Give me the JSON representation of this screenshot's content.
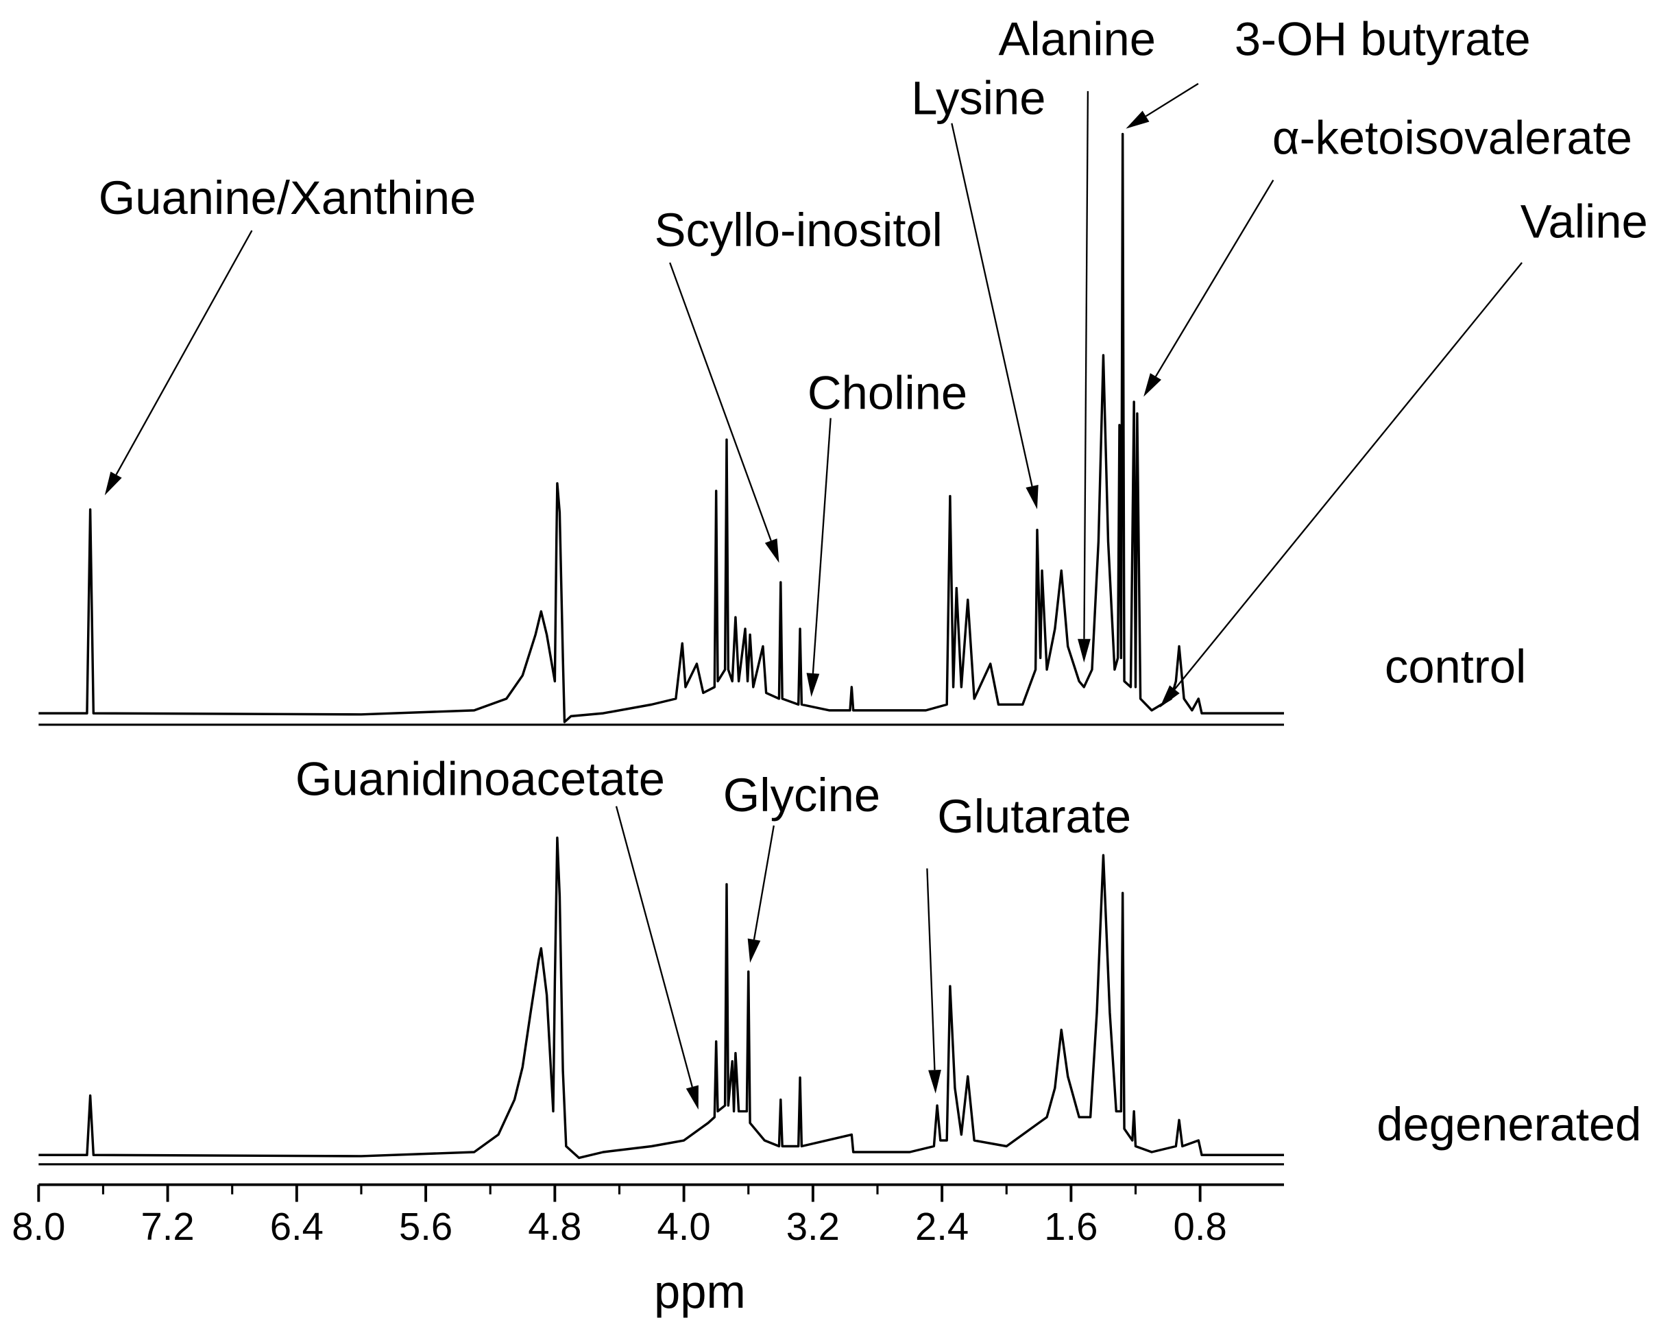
{
  "chart_data": {
    "type": "line",
    "xlabel": "ppm",
    "xlim": [
      8.0,
      0.28
    ],
    "ylim": [
      0,
      100
    ],
    "xticks": [
      {
        "value": 8,
        "label": "8.0"
      },
      7.2,
      6.4,
      5.6,
      4.8,
      {
        "value": 4,
        "label": "4.0"
      },
      3.2,
      2.4,
      1.6,
      0.8
    ],
    "series": [
      {
        "name": "control",
        "color": "#000000",
        "x": [
          8.0,
          7.7,
          7.68,
          7.66,
          6.0,
          5.3,
          5.1,
          5.0,
          4.92,
          4.885,
          4.85,
          4.8,
          4.79,
          4.785,
          4.77,
          4.75,
          4.74,
          4.7,
          4.5,
          4.2,
          4.05,
          4.01,
          3.99,
          3.92,
          3.88,
          3.81,
          3.8,
          3.79,
          3.745,
          3.735,
          3.725,
          3.7,
          3.68,
          3.66,
          3.62,
          3.605,
          3.59,
          3.57,
          3.51,
          3.49,
          3.41,
          3.4,
          3.39,
          3.29,
          3.28,
          3.27,
          3.1,
          2.97,
          2.96,
          2.95,
          2.5,
          2.37,
          2.35,
          2.33,
          2.31,
          2.28,
          2.24,
          2.2,
          2.1,
          2.05,
          1.9,
          1.82,
          1.81,
          1.79,
          1.78,
          1.75,
          1.7,
          1.66,
          1.62,
          1.55,
          1.52,
          1.47,
          1.43,
          1.4,
          1.37,
          1.33,
          1.31,
          1.3,
          1.29,
          1.28,
          1.27,
          1.23,
          1.21,
          1.2,
          1.19,
          1.17,
          1.1,
          0.98,
          0.95,
          0.93,
          0.9,
          0.85,
          0.81,
          0.79,
          0.5,
          0.28
        ],
        "values": [
          0.5,
          0.5,
          35.5,
          0.5,
          0.3,
          1,
          3,
          7,
          14,
          18,
          14,
          6,
          30,
          40,
          35,
          10,
          -1,
          0,
          0.5,
          2,
          3,
          12.5,
          5,
          9,
          4,
          5,
          38.7,
          6,
          8,
          47.5,
          8,
          6,
          17,
          6,
          15,
          6,
          14,
          5,
          12,
          4,
          3,
          23,
          3,
          2,
          15,
          2,
          1,
          1,
          5,
          1,
          1,
          2,
          37.8,
          5,
          22,
          5,
          20,
          3,
          9,
          2,
          2,
          8,
          32,
          10,
          25,
          8,
          15,
          25,
          12,
          6,
          5,
          8,
          30,
          62,
          30,
          8,
          10,
          50,
          10,
          100,
          6,
          5,
          54,
          5,
          52,
          3,
          1,
          3,
          6,
          12,
          3,
          1,
          3,
          0.5,
          0.5,
          0.5
        ],
        "annotations": [
          {
            "text": "Guanine/Xanthine",
            "x": 7.59
          },
          {
            "text": "Scyllo-inositol",
            "x": 3.41
          },
          {
            "text": "Choline",
            "x": 3.21
          },
          {
            "text": "Lysine",
            "x": 1.81
          },
          {
            "text": "Alanine",
            "x": 1.52
          },
          {
            "text": "3-OH butyrate",
            "x": 1.26
          },
          {
            "text": "α-ketoisovalerate",
            "x": 1.15
          },
          {
            "text": "Valine",
            "x": 1.05
          }
        ]
      },
      {
        "name": "degenerated",
        "color": "#000000",
        "x": [
          8.0,
          7.7,
          7.68,
          7.66,
          6.0,
          5.3,
          5.15,
          5.05,
          5.0,
          4.95,
          4.9,
          4.885,
          4.85,
          4.81,
          4.8,
          4.785,
          4.77,
          4.75,
          4.73,
          4.65,
          4.5,
          4.2,
          4.0,
          3.9,
          3.85,
          3.81,
          3.8,
          3.79,
          3.745,
          3.735,
          3.725,
          3.7,
          3.69,
          3.68,
          3.66,
          3.61,
          3.6,
          3.59,
          3.5,
          3.41,
          3.4,
          3.39,
          3.29,
          3.28,
          3.27,
          2.96,
          2.95,
          2.6,
          2.45,
          2.43,
          2.41,
          2.37,
          2.35,
          2.32,
          2.28,
          2.24,
          2.2,
          2.0,
          1.85,
          1.75,
          1.7,
          1.66,
          1.62,
          1.55,
          1.48,
          1.44,
          1.4,
          1.36,
          1.32,
          1.29,
          1.28,
          1.27,
          1.22,
          1.21,
          1.2,
          1.1,
          0.95,
          0.93,
          0.91,
          0.81,
          0.79,
          0.28
        ],
        "values": [
          0.5,
          0.5,
          10.7,
          0.5,
          0.3,
          1,
          4,
          10,
          15.6,
          25,
          34,
          36,
          28,
          8,
          30,
          55,
          45,
          15,
          2,
          0,
          1,
          2,
          3,
          5,
          6,
          7,
          20,
          8,
          9,
          47,
          9,
          16.6,
          8,
          18,
          8,
          8,
          32,
          6,
          3,
          2,
          10,
          2,
          2,
          13.8,
          2,
          4,
          1,
          1,
          2,
          9,
          3,
          3,
          29.5,
          12,
          4,
          14,
          3,
          2,
          5,
          7,
          12,
          22,
          14,
          7,
          7,
          25,
          52,
          25,
          8,
          8,
          45.5,
          5,
          3,
          8,
          2,
          1,
          2,
          6.5,
          2,
          3,
          0.5,
          0.5
        ],
        "annotations": [
          {
            "text": "Guanidinoacetate",
            "x": 3.91
          },
          {
            "text": "Glycine",
            "x": 3.59
          },
          {
            "text": "Glutarate",
            "x": 2.44
          }
        ]
      }
    ]
  }
}
